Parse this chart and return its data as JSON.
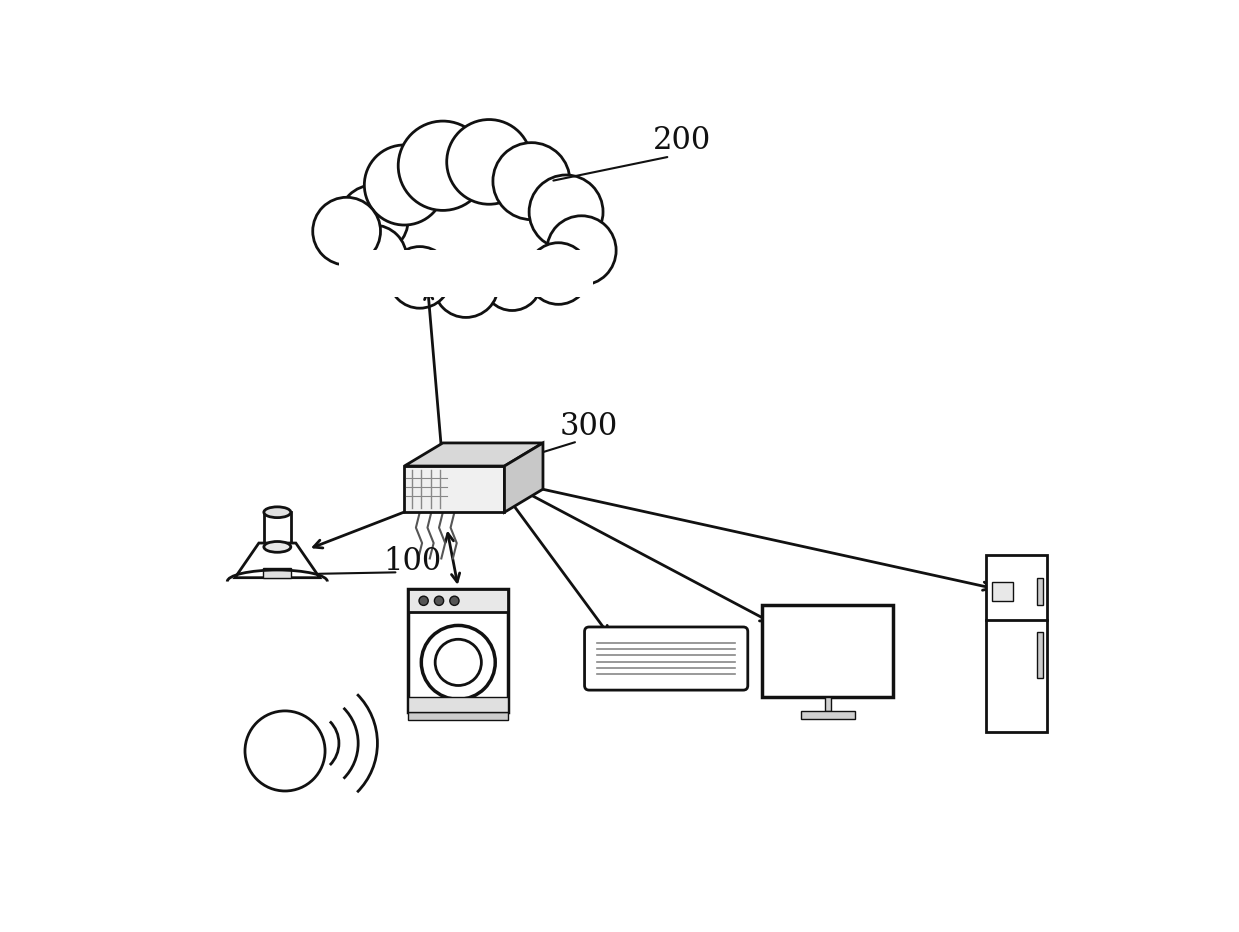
{
  "background_color": "#ffffff",
  "label_200": "200",
  "label_300": "300",
  "label_100": "100",
  "line_color": "#111111",
  "text_color": "#111111",
  "lw": 2.0
}
